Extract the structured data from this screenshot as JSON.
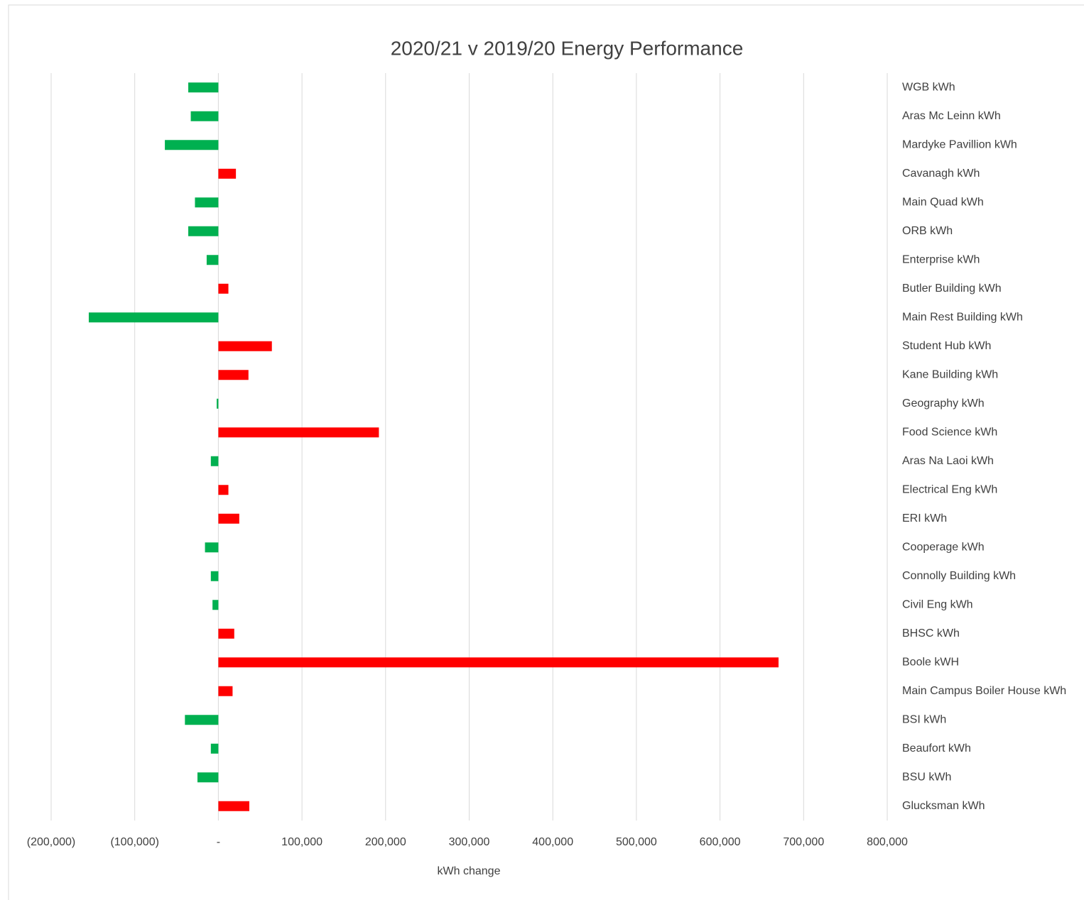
{
  "chart_data": {
    "type": "bar",
    "orientation": "horizontal",
    "title": "2020/21 v 2019/20  Energy Performance",
    "x_label": "kWh change",
    "categories": [
      "WGB kWh",
      "Aras Mc Leinn kWh",
      "Mardyke Pavillion kWh",
      "Cavanagh kWh",
      "Main Quad kWh",
      "ORB kWh",
      "Enterprise kWh",
      "Butler Building kWh",
      "Main Rest Building kWh",
      "Student Hub kWh",
      "Kane Building kWh",
      "Geography kWh",
      "Food Science kWh",
      "Aras Na Laoi kWh",
      "Electrical Eng kWh",
      "ERI kWh",
      "Cooperage kWh",
      "Connolly Building kWh",
      "Civil Eng kWh",
      "BHSC kWh",
      "Boole kWH",
      "Main Campus Boiler House kWh",
      "BSI kWh",
      "Beaufort kWh",
      "BSU kWh",
      "Glucksman kWh"
    ],
    "values": [
      -36000,
      -33000,
      -64000,
      21000,
      -28000,
      -36000,
      -14000,
      12000,
      -155000,
      64000,
      36000,
      -2000,
      192000,
      -9000,
      12000,
      25000,
      -16000,
      -9000,
      -7000,
      19000,
      670000,
      17000,
      -40000,
      -9000,
      -25000,
      37000
    ],
    "positive_color": "#ff0000",
    "negative_color": "#00b050",
    "xlim": [
      -200000,
      800000
    ],
    "xticks": [
      {
        "value": -200000,
        "label": "(200,000)"
      },
      {
        "value": -100000,
        "label": "(100,000)"
      },
      {
        "value": 0,
        "label": "-"
      },
      {
        "value": 100000,
        "label": "100,000"
      },
      {
        "value": 200000,
        "label": "200,000"
      },
      {
        "value": 300000,
        "label": "300,000"
      },
      {
        "value": 400000,
        "label": "400,000"
      },
      {
        "value": 500000,
        "label": "500,000"
      },
      {
        "value": 600000,
        "label": "600,000"
      },
      {
        "value": 700000,
        "label": "700,000"
      },
      {
        "value": 800000,
        "label": "800,000"
      }
    ],
    "grid": true
  }
}
